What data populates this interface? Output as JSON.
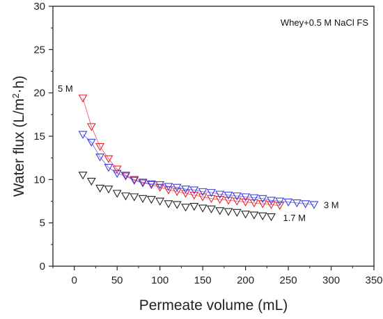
{
  "chart_data": {
    "type": "scatter",
    "xlabel": "Permeate volume (mL)",
    "ylabel_main": "Water flux (L/m",
    "ylabel_sup": "2",
    "ylabel_tail": "·h)",
    "xlim": [
      -25,
      350
    ],
    "ylim": [
      0,
      30
    ],
    "x_ticks": [
      0,
      50,
      100,
      150,
      200,
      250,
      300,
      350
    ],
    "y_ticks": [
      0,
      5,
      10,
      15,
      20,
      25,
      30
    ],
    "grid": false,
    "marker": "open-down-triangle",
    "annotation": "Whey+0.5 M NaCl FS",
    "series": [
      {
        "name": "5 M",
        "color": "#e8212a",
        "line": true,
        "x": [
          10,
          20,
          30,
          40,
          50,
          60,
          70,
          80,
          90,
          100,
          110,
          120,
          130,
          140,
          150,
          160,
          170,
          180,
          190,
          200,
          210,
          220,
          230,
          240
        ],
        "y": [
          19.4,
          16.1,
          13.8,
          12.4,
          11.2,
          10.5,
          10.0,
          9.7,
          9.4,
          9.1,
          8.8,
          8.6,
          8.4,
          8.2,
          8.0,
          7.8,
          7.7,
          7.6,
          7.5,
          7.4,
          7.3,
          7.2,
          7.1,
          7.0
        ]
      },
      {
        "name": "3 M",
        "color": "#3a3ae6",
        "line": true,
        "x": [
          10,
          20,
          30,
          40,
          50,
          60,
          70,
          80,
          90,
          100,
          110,
          120,
          130,
          140,
          150,
          160,
          170,
          180,
          190,
          200,
          210,
          220,
          230,
          240,
          250,
          260,
          270,
          280
        ],
        "y": [
          15.2,
          14.3,
          12.6,
          11.4,
          10.7,
          10.4,
          9.9,
          9.6,
          9.5,
          9.4,
          9.2,
          9.1,
          8.9,
          8.8,
          8.6,
          8.5,
          8.3,
          8.2,
          8.1,
          8.0,
          7.9,
          7.8,
          7.6,
          7.5,
          7.4,
          7.3,
          7.2,
          7.1
        ]
      },
      {
        "name": "1.7 M",
        "color": "#222222",
        "line": false,
        "x": [
          10,
          20,
          30,
          40,
          50,
          60,
          70,
          80,
          90,
          100,
          110,
          120,
          130,
          140,
          150,
          160,
          170,
          180,
          190,
          200,
          210,
          220,
          230
        ],
        "y": [
          10.5,
          9.8,
          9.0,
          8.9,
          8.4,
          8.1,
          8.0,
          7.8,
          7.7,
          7.5,
          7.2,
          7.1,
          6.8,
          6.9,
          6.7,
          6.6,
          6.4,
          6.3,
          6.2,
          6.0,
          5.9,
          5.8,
          5.7
        ]
      }
    ]
  }
}
